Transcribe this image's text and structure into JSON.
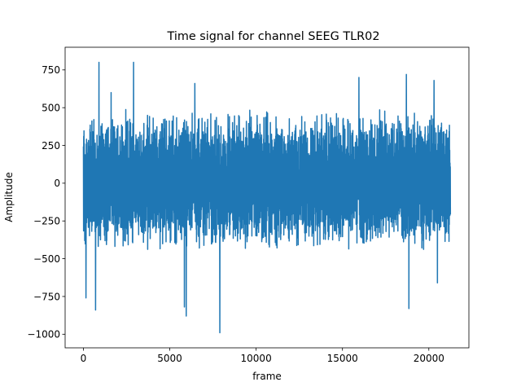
{
  "chart_data": {
    "type": "line",
    "title": "Time signal for channel SEEG TLR02",
    "xlabel": "frame",
    "ylabel": "Amplitude",
    "xlim": [
      -1060,
      22320
    ],
    "ylim": [
      -1090,
      900
    ],
    "x_ticks": [
      0,
      5000,
      10000,
      15000,
      20000
    ],
    "y_ticks": [
      -1000,
      -750,
      -500,
      -250,
      0,
      250,
      500,
      750
    ],
    "x_tick_labels": [
      "0",
      "5000",
      "10000",
      "15000",
      "20000"
    ],
    "y_tick_labels": [
      "−1000",
      "−750",
      "−500",
      "−250",
      "0",
      "250",
      "500",
      "750"
    ],
    "grid": false,
    "legend": "none",
    "series": [
      {
        "color": "#1f77b4",
        "x_start": 0,
        "x_end": 21250,
        "sample_count": 21250,
        "typical_range": [
          -450,
          500
        ],
        "peaks": [
          {
            "x": 900,
            "y": 800
          },
          {
            "x": 2900,
            "y": 800
          },
          {
            "x": 1600,
            "y": 600
          },
          {
            "x": 6450,
            "y": 660
          },
          {
            "x": 15950,
            "y": 700
          },
          {
            "x": 18700,
            "y": 720
          },
          {
            "x": 20300,
            "y": 680
          }
        ],
        "troughs": [
          {
            "x": 150,
            "y": -760
          },
          {
            "x": 700,
            "y": -840
          },
          {
            "x": 900,
            "y": -750
          },
          {
            "x": 5850,
            "y": -820
          },
          {
            "x": 5950,
            "y": -880
          },
          {
            "x": 7900,
            "y": -990
          },
          {
            "x": 18850,
            "y": -830
          },
          {
            "x": 20500,
            "y": -660
          }
        ]
      }
    ]
  }
}
